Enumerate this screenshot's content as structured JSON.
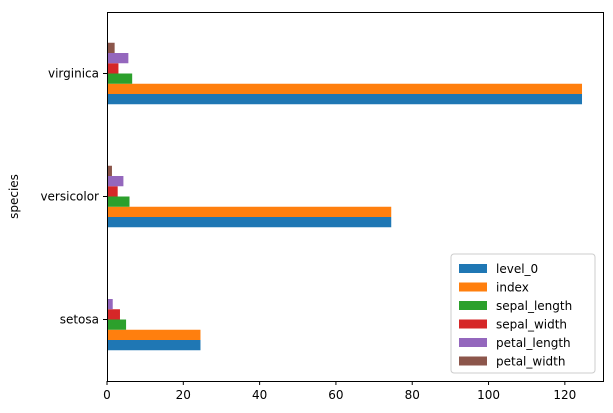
{
  "chart_data": {
    "type": "bar",
    "orientation": "horizontal",
    "title": "",
    "xlabel": "",
    "ylabel": "species",
    "categories": [
      "setosa",
      "versicolor",
      "virginica"
    ],
    "xlim": [
      0,
      130
    ],
    "x_ticks": [
      0,
      20,
      40,
      60,
      80,
      100,
      120
    ],
    "grid": false,
    "legend_position": "lower-right",
    "series": [
      {
        "name": "level_0",
        "color": "#1f77b4",
        "values": [
          24.5,
          74.5,
          124.5
        ]
      },
      {
        "name": "index",
        "color": "#ff7f0e",
        "values": [
          24.5,
          74.5,
          124.5
        ]
      },
      {
        "name": "sepal_length",
        "color": "#2ca02c",
        "values": [
          5.0,
          5.9,
          6.6
        ]
      },
      {
        "name": "sepal_width",
        "color": "#d62728",
        "values": [
          3.4,
          2.8,
          3.0
        ]
      },
      {
        "name": "petal_length",
        "color": "#9467bd",
        "values": [
          1.5,
          4.3,
          5.6
        ]
      },
      {
        "name": "petal_width",
        "color": "#8c564b",
        "values": [
          0.2,
          1.3,
          2.0
        ]
      }
    ]
  }
}
